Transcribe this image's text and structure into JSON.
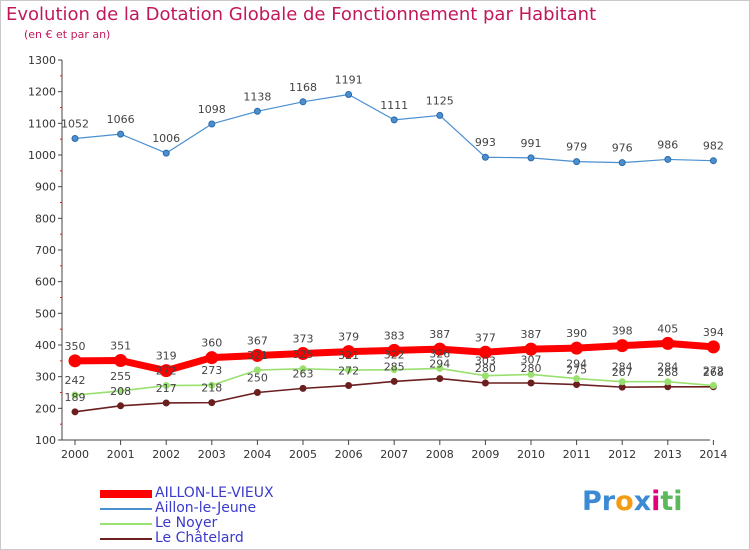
{
  "title": "Evolution de la Dotation Globale de Fonctionnement par Habitant",
  "subtitle": "(en € et par an)",
  "brand": {
    "letters": [
      "P",
      "r",
      "o",
      "x",
      "i",
      "t",
      "i"
    ],
    "colors": [
      "#3b8bd4",
      "#3b8bd4",
      "#f39c12",
      "#3b8bd4",
      "#e2007a",
      "#5cb85c",
      "#5cb85c"
    ]
  },
  "chart_data": {
    "type": "line",
    "title": "Evolution de la Dotation Globale de Fonctionnement par Habitant",
    "subtitle": "(en € et par an)",
    "x": [
      "2000",
      "2001",
      "2002",
      "2003",
      "2004",
      "2005",
      "2006",
      "2007",
      "2008",
      "2009",
      "2010",
      "2011",
      "2012",
      "2013",
      "2014"
    ],
    "ylim": [
      100,
      1300
    ],
    "yticks": [
      100,
      200,
      300,
      400,
      500,
      600,
      700,
      800,
      900,
      1000,
      1100,
      1200,
      1300
    ],
    "grid": false,
    "legend_position": "bottom-left",
    "series": [
      {
        "name": "AILLON-LE-VIEUX",
        "color": "#ff0000",
        "values": [
          350,
          351,
          319,
          360,
          367,
          373,
          379,
          383,
          387,
          377,
          387,
          390,
          398,
          405,
          394
        ],
        "labels": [
          "350",
          "351",
          "319",
          "360",
          "367",
          "373",
          "379",
          "383",
          "387",
          "377",
          "387",
          "390",
          "398",
          "405",
          "394"
        ]
      },
      {
        "name": "Aillon-le-Jeune",
        "color": "#4a8fd0",
        "values": [
          1052,
          1066,
          1006,
          1098,
          1138,
          1168,
          1191,
          1111,
          1125,
          993,
          991,
          979,
          976,
          986,
          982
        ],
        "labels": [
          "1052",
          "1066",
          "1006",
          "1098",
          "1138",
          "1168",
          "1191",
          "1111",
          "1125",
          "993",
          "991",
          "979",
          "976",
          "986",
          "982"
        ]
      },
      {
        "name": "Le Noyer",
        "color": "#99e06e",
        "values": [
          242,
          255,
          272,
          273,
          321,
          325,
          321,
          322,
          326,
          303,
          307,
          294,
          284,
          284,
          272
        ],
        "labels": [
          "242",
          "255",
          "272",
          "273",
          "321",
          "325",
          "321",
          "322",
          "326",
          "303",
          "307",
          "294",
          "284",
          "284",
          "272"
        ]
      },
      {
        "name": "Le Châtelard",
        "color": "#6b1f1f",
        "values": [
          189,
          208,
          217,
          218,
          250,
          263,
          272,
          285,
          294,
          280,
          280,
          275,
          267,
          268,
          268
        ],
        "labels": [
          "189",
          "208",
          "217",
          "218",
          "250",
          "263",
          "272",
          "285",
          "294",
          "280",
          "280",
          "275",
          "267",
          "268",
          "268"
        ]
      }
    ]
  }
}
